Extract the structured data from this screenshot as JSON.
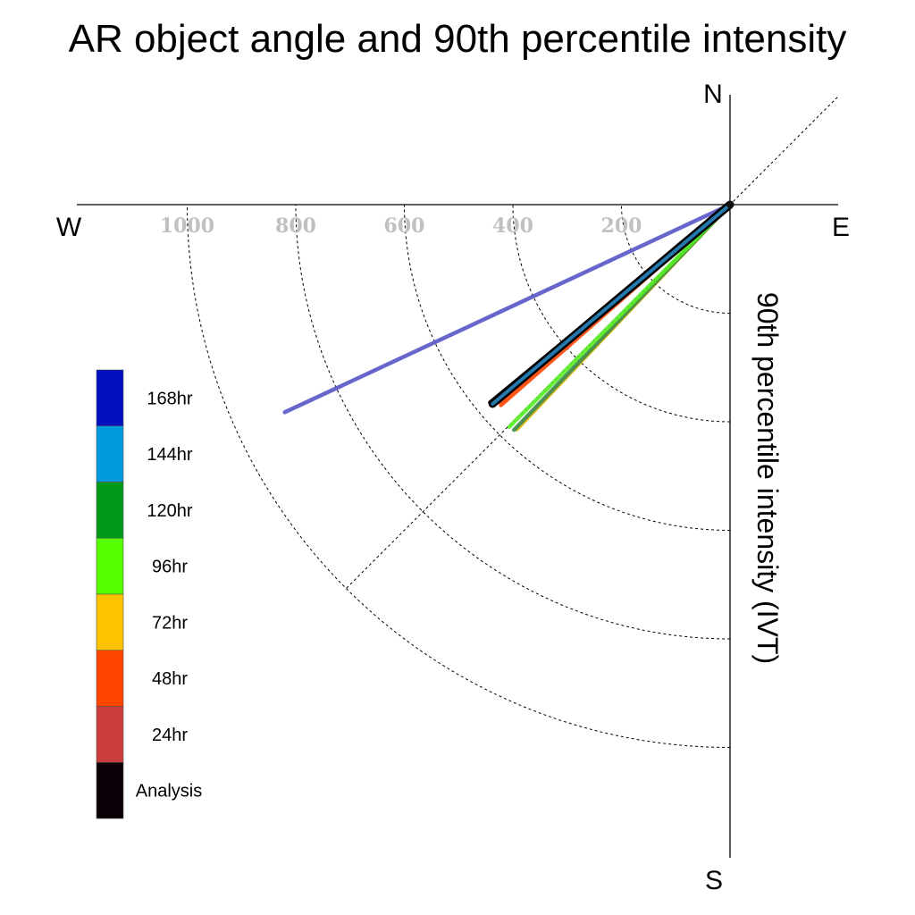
{
  "chart_data": {
    "type": "polar-vector",
    "title": "AR object angle and 90th percentile intensity",
    "radial_label": "90th percentile intensity (IVT)",
    "compass": {
      "north": "N",
      "east": "E",
      "south": "S",
      "west": "W"
    },
    "radial_ticks": [
      200,
      400,
      600,
      800,
      1000
    ],
    "radial_max": 1000,
    "legend_placement": "left",
    "series": [
      {
        "name": "168hr",
        "color": "#0010c0",
        "line_color": "#5555c8",
        "angle_deg": 245.0,
        "intensity": 905
      },
      {
        "name": "144hr",
        "color": "#0099dd",
        "line_color": "#2a86c0",
        "angle_deg": 230.0,
        "intensity": 571
      },
      {
        "name": "120hr",
        "color": "#009918",
        "line_color": "#3c8c50",
        "angle_deg": 223.8,
        "intensity": 575
      },
      {
        "name": "96hr",
        "color": "#55ff00",
        "line_color": "#55ee22",
        "angle_deg": 224.8,
        "intensity": 577
      },
      {
        "name": "72hr",
        "color": "#ffc400",
        "line_color": "#e0b400",
        "angle_deg": 223.5,
        "intensity": 571
      },
      {
        "name": "48hr",
        "color": "#ff4500",
        "line_color": "#ff4500",
        "angle_deg": 228.8,
        "intensity": 561
      },
      {
        "name": "24hr",
        "color": "#cc3c3c",
        "line_color": "#cc3c3c",
        "angle_deg": 229.5,
        "intensity": 560
      },
      {
        "name": "Analysis",
        "color": "#0c0008",
        "line_color": "#000000",
        "angle_deg": 230.5,
        "intensity": 573
      }
    ],
    "legend_order": [
      "168hr",
      "144hr",
      "120hr",
      "96hr",
      "72hr",
      "48hr",
      "24hr",
      "Analysis"
    ],
    "draw_order": [
      "168hr",
      "72hr",
      "120hr",
      "96hr",
      "24hr",
      "48hr",
      "Analysis",
      "144hr"
    ]
  }
}
